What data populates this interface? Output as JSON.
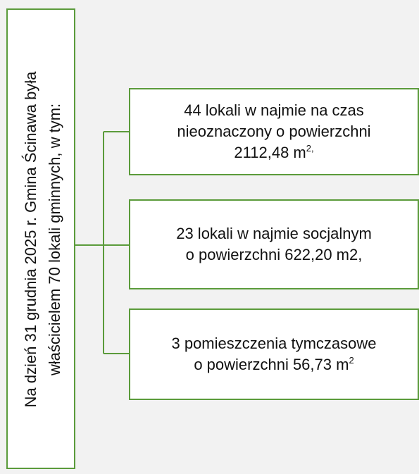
{
  "root": {
    "lines": [
      "Na dzień 31 grudnia 2025 r. Gmina Ścinawa była",
      "właścicielem 70 lokali gminnych, w tym:"
    ]
  },
  "nodes": [
    {
      "lines": [
        "44 lokali w najmie na czas",
        "nieoznaczony o powierzchni",
        "2112,48 m"
      ],
      "sup": "2,"
    },
    {
      "lines": [
        "23 lokali w najmie socjalnym",
        "o powierzchni 622,20 m2,"
      ]
    },
    {
      "lines": [
        "3 pomieszczenia tymczasowe",
        "o powierzchni 56,73 m"
      ],
      "sup": "2"
    }
  ]
}
